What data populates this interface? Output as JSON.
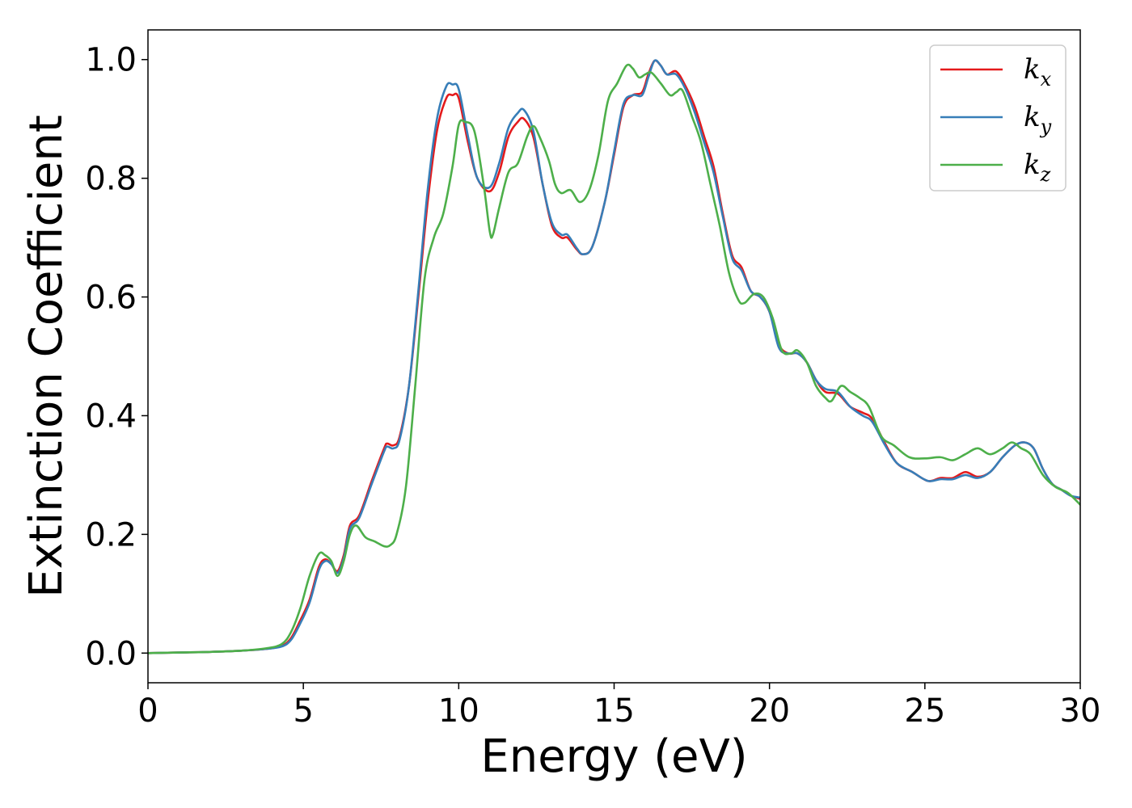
{
  "chart_data": {
    "type": "line",
    "title": "",
    "xlabel": "Energy (eV)",
    "ylabel": "Extinction Coefficient",
    "xlim": [
      0,
      30
    ],
    "ylim": [
      -0.05,
      1.05
    ],
    "xticks": [
      0,
      5,
      10,
      15,
      20,
      25,
      30
    ],
    "yticks": [
      0.0,
      0.2,
      0.4,
      0.6,
      0.8,
      1.0
    ],
    "xtick_labels": [
      "0",
      "5",
      "10",
      "15",
      "20",
      "25",
      "30"
    ],
    "ytick_labels": [
      "0.0",
      "0.2",
      "0.4",
      "0.6",
      "0.8",
      "1.0"
    ],
    "grid": false,
    "legend_position": "top-right",
    "series": [
      {
        "name": "k",
        "subscript": "x",
        "color": "#e41a1c",
        "points": [
          [
            0,
            0.0
          ],
          [
            1,
            0.001
          ],
          [
            2,
            0.002
          ],
          [
            3,
            0.004
          ],
          [
            3.8,
            0.007
          ],
          [
            4.3,
            0.012
          ],
          [
            4.6,
            0.025
          ],
          [
            4.9,
            0.055
          ],
          [
            5.2,
            0.09
          ],
          [
            5.5,
            0.145
          ],
          [
            5.7,
            0.158
          ],
          [
            5.9,
            0.15
          ],
          [
            6.1,
            0.138
          ],
          [
            6.3,
            0.165
          ],
          [
            6.5,
            0.215
          ],
          [
            6.8,
            0.232
          ],
          [
            7.2,
            0.29
          ],
          [
            7.6,
            0.345
          ],
          [
            7.7,
            0.353
          ],
          [
            7.9,
            0.35
          ],
          [
            8.1,
            0.365
          ],
          [
            8.4,
            0.45
          ],
          [
            8.7,
            0.6
          ],
          [
            9.0,
            0.76
          ],
          [
            9.3,
            0.88
          ],
          [
            9.6,
            0.935
          ],
          [
            9.8,
            0.94
          ],
          [
            10.0,
            0.935
          ],
          [
            10.3,
            0.86
          ],
          [
            10.6,
            0.8
          ],
          [
            11.0,
            0.778
          ],
          [
            11.3,
            0.81
          ],
          [
            11.6,
            0.87
          ],
          [
            11.9,
            0.895
          ],
          [
            12.1,
            0.9
          ],
          [
            12.4,
            0.87
          ],
          [
            12.7,
            0.79
          ],
          [
            13.0,
            0.72
          ],
          [
            13.3,
            0.7
          ],
          [
            13.5,
            0.7
          ],
          [
            13.8,
            0.68
          ],
          [
            14.0,
            0.672
          ],
          [
            14.3,
            0.685
          ],
          [
            14.7,
            0.76
          ],
          [
            15.0,
            0.84
          ],
          [
            15.3,
            0.92
          ],
          [
            15.6,
            0.94
          ],
          [
            15.9,
            0.945
          ],
          [
            16.1,
            0.975
          ],
          [
            16.3,
            0.998
          ],
          [
            16.5,
            0.99
          ],
          [
            16.7,
            0.975
          ],
          [
            17.0,
            0.98
          ],
          [
            17.3,
            0.955
          ],
          [
            17.6,
            0.92
          ],
          [
            17.9,
            0.87
          ],
          [
            18.2,
            0.82
          ],
          [
            18.5,
            0.74
          ],
          [
            18.8,
            0.67
          ],
          [
            19.1,
            0.65
          ],
          [
            19.4,
            0.61
          ],
          [
            19.7,
            0.6
          ],
          [
            20.0,
            0.575
          ],
          [
            20.3,
            0.52
          ],
          [
            20.6,
            0.505
          ],
          [
            20.9,
            0.505
          ],
          [
            21.2,
            0.49
          ],
          [
            21.5,
            0.46
          ],
          [
            21.8,
            0.44
          ],
          [
            22.2,
            0.437
          ],
          [
            22.6,
            0.415
          ],
          [
            23.0,
            0.405
          ],
          [
            23.3,
            0.395
          ],
          [
            23.7,
            0.355
          ],
          [
            24.1,
            0.32
          ],
          [
            24.6,
            0.305
          ],
          [
            25.1,
            0.29
          ],
          [
            25.5,
            0.295
          ],
          [
            25.9,
            0.295
          ],
          [
            26.3,
            0.305
          ],
          [
            26.7,
            0.297
          ],
          [
            27.1,
            0.305
          ],
          [
            27.5,
            0.33
          ],
          [
            27.9,
            0.35
          ],
          [
            28.2,
            0.355
          ],
          [
            28.5,
            0.345
          ],
          [
            28.8,
            0.31
          ],
          [
            29.1,
            0.285
          ],
          [
            29.4,
            0.275
          ],
          [
            29.7,
            0.265
          ],
          [
            30,
            0.26
          ]
        ]
      },
      {
        "name": "k",
        "subscript": "y",
        "color": "#377eb8",
        "points": [
          [
            0,
            0.0
          ],
          [
            1,
            0.001
          ],
          [
            2,
            0.002
          ],
          [
            3,
            0.004
          ],
          [
            3.8,
            0.007
          ],
          [
            4.3,
            0.011
          ],
          [
            4.6,
            0.022
          ],
          [
            4.9,
            0.05
          ],
          [
            5.2,
            0.085
          ],
          [
            5.5,
            0.14
          ],
          [
            5.7,
            0.155
          ],
          [
            5.9,
            0.15
          ],
          [
            6.1,
            0.135
          ],
          [
            6.3,
            0.16
          ],
          [
            6.5,
            0.21
          ],
          [
            6.8,
            0.228
          ],
          [
            7.2,
            0.285
          ],
          [
            7.6,
            0.34
          ],
          [
            7.7,
            0.348
          ],
          [
            7.9,
            0.345
          ],
          [
            8.1,
            0.36
          ],
          [
            8.4,
            0.45
          ],
          [
            8.7,
            0.61
          ],
          [
            9.0,
            0.78
          ],
          [
            9.3,
            0.9
          ],
          [
            9.6,
            0.955
          ],
          [
            9.8,
            0.958
          ],
          [
            10.0,
            0.95
          ],
          [
            10.3,
            0.87
          ],
          [
            10.6,
            0.8
          ],
          [
            11.0,
            0.785
          ],
          [
            11.3,
            0.825
          ],
          [
            11.6,
            0.885
          ],
          [
            11.9,
            0.91
          ],
          [
            12.1,
            0.915
          ],
          [
            12.4,
            0.88
          ],
          [
            12.7,
            0.79
          ],
          [
            13.0,
            0.725
          ],
          [
            13.3,
            0.705
          ],
          [
            13.5,
            0.705
          ],
          [
            13.8,
            0.682
          ],
          [
            14.0,
            0.672
          ],
          [
            14.3,
            0.685
          ],
          [
            14.7,
            0.76
          ],
          [
            15.0,
            0.845
          ],
          [
            15.3,
            0.925
          ],
          [
            15.6,
            0.94
          ],
          [
            15.9,
            0.94
          ],
          [
            16.1,
            0.97
          ],
          [
            16.3,
            0.998
          ],
          [
            16.5,
            0.99
          ],
          [
            16.7,
            0.975
          ],
          [
            17.0,
            0.975
          ],
          [
            17.3,
            0.95
          ],
          [
            17.6,
            0.91
          ],
          [
            17.9,
            0.86
          ],
          [
            18.2,
            0.81
          ],
          [
            18.5,
            0.735
          ],
          [
            18.8,
            0.665
          ],
          [
            19.1,
            0.645
          ],
          [
            19.4,
            0.61
          ],
          [
            19.7,
            0.6
          ],
          [
            20.0,
            0.575
          ],
          [
            20.3,
            0.515
          ],
          [
            20.6,
            0.505
          ],
          [
            20.9,
            0.505
          ],
          [
            21.2,
            0.49
          ],
          [
            21.5,
            0.46
          ],
          [
            21.8,
            0.445
          ],
          [
            22.2,
            0.44
          ],
          [
            22.6,
            0.415
          ],
          [
            23.0,
            0.4
          ],
          [
            23.3,
            0.39
          ],
          [
            23.7,
            0.352
          ],
          [
            24.1,
            0.32
          ],
          [
            24.6,
            0.305
          ],
          [
            25.1,
            0.29
          ],
          [
            25.5,
            0.293
          ],
          [
            25.9,
            0.293
          ],
          [
            26.3,
            0.3
          ],
          [
            26.7,
            0.295
          ],
          [
            27.1,
            0.305
          ],
          [
            27.5,
            0.33
          ],
          [
            27.9,
            0.35
          ],
          [
            28.2,
            0.355
          ],
          [
            28.5,
            0.345
          ],
          [
            28.8,
            0.31
          ],
          [
            29.1,
            0.285
          ],
          [
            29.4,
            0.275
          ],
          [
            29.7,
            0.265
          ],
          [
            30,
            0.262
          ]
        ]
      },
      {
        "name": "k",
        "subscript": "z",
        "color": "#4daf4a",
        "points": [
          [
            0,
            0.0
          ],
          [
            1,
            0.001
          ],
          [
            2,
            0.002
          ],
          [
            3,
            0.004
          ],
          [
            3.8,
            0.008
          ],
          [
            4.3,
            0.015
          ],
          [
            4.6,
            0.035
          ],
          [
            4.9,
            0.075
          ],
          [
            5.2,
            0.13
          ],
          [
            5.5,
            0.167
          ],
          [
            5.7,
            0.165
          ],
          [
            5.9,
            0.155
          ],
          [
            6.1,
            0.13
          ],
          [
            6.3,
            0.155
          ],
          [
            6.5,
            0.2
          ],
          [
            6.7,
            0.215
          ],
          [
            7.0,
            0.195
          ],
          [
            7.3,
            0.188
          ],
          [
            7.6,
            0.18
          ],
          [
            7.8,
            0.182
          ],
          [
            8.0,
            0.2
          ],
          [
            8.3,
            0.28
          ],
          [
            8.6,
            0.45
          ],
          [
            8.9,
            0.63
          ],
          [
            9.2,
            0.7
          ],
          [
            9.5,
            0.74
          ],
          [
            9.8,
            0.82
          ],
          [
            10.0,
            0.89
          ],
          [
            10.2,
            0.895
          ],
          [
            10.5,
            0.88
          ],
          [
            10.8,
            0.79
          ],
          [
            11.0,
            0.71
          ],
          [
            11.1,
            0.705
          ],
          [
            11.3,
            0.75
          ],
          [
            11.6,
            0.81
          ],
          [
            11.9,
            0.825
          ],
          [
            12.2,
            0.87
          ],
          [
            12.4,
            0.888
          ],
          [
            12.6,
            0.87
          ],
          [
            12.9,
            0.83
          ],
          [
            13.1,
            0.79
          ],
          [
            13.3,
            0.775
          ],
          [
            13.6,
            0.78
          ],
          [
            13.9,
            0.76
          ],
          [
            14.2,
            0.78
          ],
          [
            14.5,
            0.84
          ],
          [
            14.8,
            0.93
          ],
          [
            15.1,
            0.96
          ],
          [
            15.4,
            0.99
          ],
          [
            15.6,
            0.985
          ],
          [
            15.8,
            0.97
          ],
          [
            16.0,
            0.975
          ],
          [
            16.2,
            0.978
          ],
          [
            16.5,
            0.96
          ],
          [
            16.8,
            0.94
          ],
          [
            17.0,
            0.945
          ],
          [
            17.2,
            0.948
          ],
          [
            17.5,
            0.905
          ],
          [
            17.8,
            0.86
          ],
          [
            18.1,
            0.79
          ],
          [
            18.4,
            0.72
          ],
          [
            18.7,
            0.64
          ],
          [
            19.0,
            0.595
          ],
          [
            19.2,
            0.59
          ],
          [
            19.5,
            0.605
          ],
          [
            19.8,
            0.6
          ],
          [
            20.1,
            0.565
          ],
          [
            20.4,
            0.51
          ],
          [
            20.7,
            0.505
          ],
          [
            20.9,
            0.51
          ],
          [
            21.2,
            0.49
          ],
          [
            21.5,
            0.45
          ],
          [
            21.8,
            0.43
          ],
          [
            22.0,
            0.425
          ],
          [
            22.3,
            0.45
          ],
          [
            22.6,
            0.44
          ],
          [
            22.9,
            0.43
          ],
          [
            23.2,
            0.415
          ],
          [
            23.6,
            0.365
          ],
          [
            24.0,
            0.35
          ],
          [
            24.5,
            0.33
          ],
          [
            25.0,
            0.328
          ],
          [
            25.5,
            0.33
          ],
          [
            25.9,
            0.325
          ],
          [
            26.3,
            0.335
          ],
          [
            26.7,
            0.345
          ],
          [
            27.1,
            0.335
          ],
          [
            27.5,
            0.345
          ],
          [
            27.8,
            0.355
          ],
          [
            28.1,
            0.345
          ],
          [
            28.4,
            0.335
          ],
          [
            28.8,
            0.3
          ],
          [
            29.2,
            0.28
          ],
          [
            29.6,
            0.27
          ],
          [
            30,
            0.25
          ]
        ]
      }
    ]
  }
}
